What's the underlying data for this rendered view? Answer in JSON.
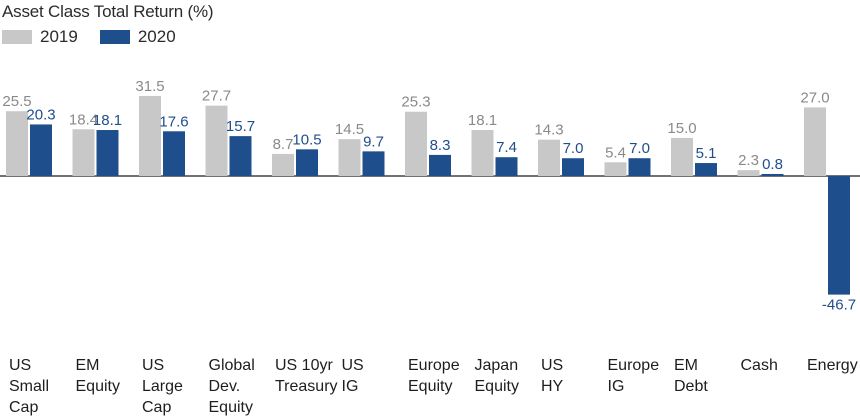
{
  "chart_data": {
    "type": "bar",
    "title": "Asset Class Total Return (%)",
    "xlabel": "",
    "ylabel": "",
    "ylim": [
      -50,
      35
    ],
    "grid": false,
    "legend_position": "top-left",
    "categories": [
      [
        "US",
        "Small",
        "Cap"
      ],
      [
        "EM",
        "Equity"
      ],
      [
        "US",
        "Large",
        "Cap"
      ],
      [
        "Global",
        "Dev.",
        "Equity"
      ],
      [
        "US 10yr",
        "Treasury"
      ],
      [
        "US",
        "IG"
      ],
      [
        "Europe",
        "Equity"
      ],
      [
        "Japan",
        "Equity"
      ],
      [
        "US",
        "HY"
      ],
      [
        "Europe",
        "IG"
      ],
      [
        "EM",
        "Debt"
      ],
      [
        "Cash"
      ],
      [
        "Energy"
      ]
    ],
    "series": [
      {
        "name": "2019",
        "color": "#c8c8c8",
        "label_color": "#8a8a8a",
        "values": [
          25.5,
          18.4,
          31.5,
          27.7,
          8.7,
          14.5,
          25.3,
          18.1,
          14.3,
          5.4,
          15.0,
          2.3,
          27.0
        ],
        "labels": [
          "25.5",
          "18.4",
          "31.5",
          "27.7",
          "8.7",
          "14.5",
          "25.3",
          "18.1",
          "14.3",
          "5.4",
          "15.0",
          "2.3",
          "27.0"
        ]
      },
      {
        "name": "2020",
        "color": "#1f4e8c",
        "label_color": "#1f4e8c",
        "values": [
          20.3,
          18.1,
          17.6,
          15.7,
          10.5,
          9.7,
          8.3,
          7.4,
          7.0,
          7.0,
          5.1,
          0.8,
          -46.7
        ],
        "labels": [
          "20.3",
          "18.1",
          "17.6",
          "15.7",
          "10.5",
          "9.7",
          "8.3",
          "7.4",
          "7.0",
          "7.0",
          "5.1",
          "0.8",
          "-46.7"
        ]
      }
    ]
  }
}
